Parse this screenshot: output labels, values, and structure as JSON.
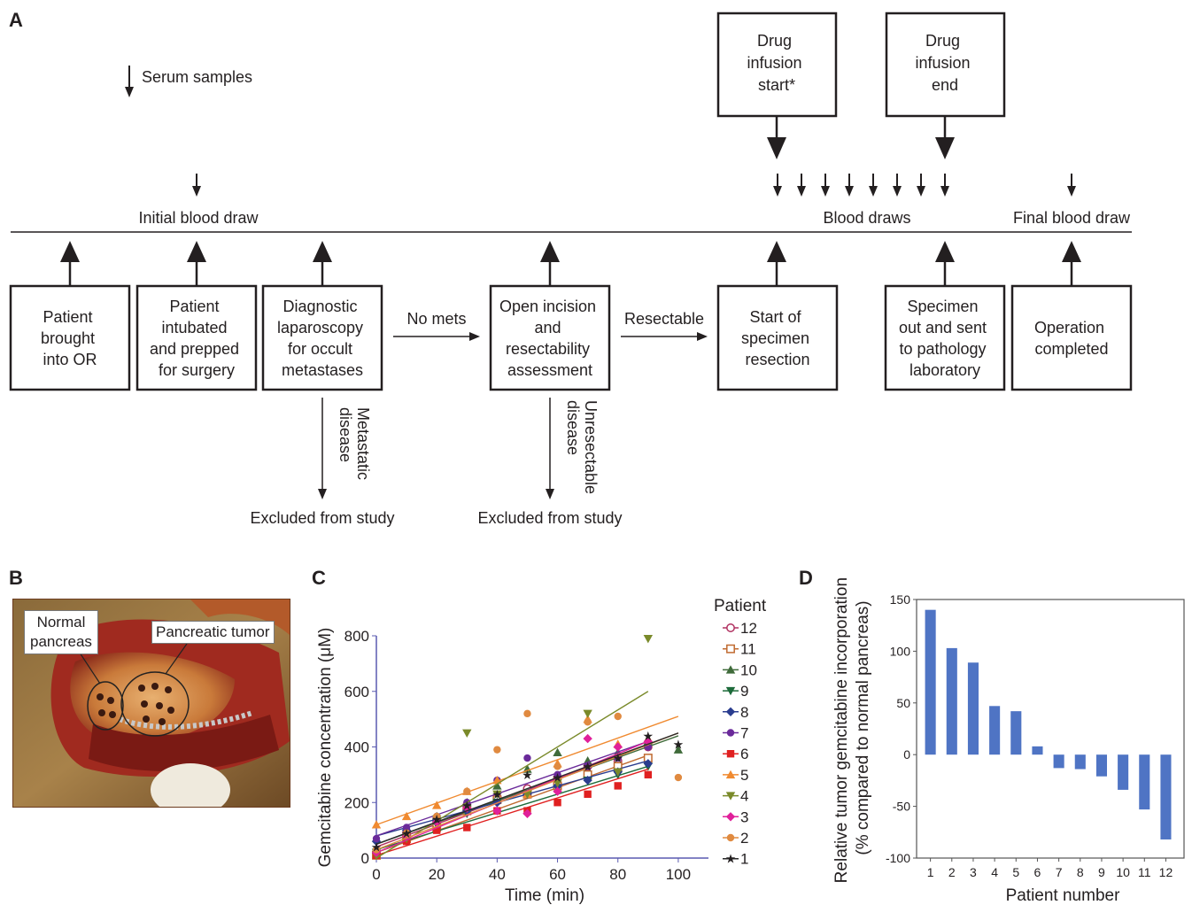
{
  "panels": {
    "a": "A",
    "b": "B",
    "c": "C",
    "d": "D"
  },
  "timeline": {
    "serum_samples": "Serum samples",
    "initial_blood_draw": "Initial blood draw",
    "blood_draws": "Blood draws",
    "final_blood_draw": "Final blood draw",
    "drug_start": [
      "Drug",
      "infusion",
      "start*"
    ],
    "drug_end": [
      "Drug",
      "infusion",
      "end"
    ],
    "steps": [
      {
        "lines": [
          "Patient",
          "brought",
          "into OR"
        ]
      },
      {
        "lines": [
          "Patient",
          "intubated",
          "and prepped",
          "for surgery"
        ]
      },
      {
        "lines": [
          "Diagnostic",
          "laparoscopy",
          "for occult",
          "metastases"
        ]
      },
      {
        "lines": [
          "Open incision",
          "and",
          "resectability",
          "assessment"
        ]
      },
      {
        "lines": [
          "Start of",
          "specimen",
          "resection"
        ]
      },
      {
        "lines": [
          "Specimen",
          "out and sent",
          "to pathology",
          "laboratory"
        ]
      },
      {
        "lines": [
          "Operation",
          "completed"
        ]
      }
    ],
    "no_mets": "No mets",
    "resectable": "Resectable",
    "metastatic_disease": [
      "Metastatic",
      "disease"
    ],
    "unresectable_disease": [
      "Unresectable",
      "disease"
    ],
    "excluded_1": "Excluded from study",
    "excluded_2": "Excluded from study"
  },
  "photo": {
    "normal_pancreas": [
      "Normal",
      "pancreas"
    ],
    "pancreatic_tumor": "Pancreatic tumor"
  },
  "colors": {
    "bar": "#4f74c4",
    "axis_c": "#5a5ab0"
  },
  "chart_data": [
    {
      "type": "scatter",
      "xlabel": "Time (min)",
      "ylabel": "Gemcitabine concentration (μM)",
      "xlim": [
        0,
        110
      ],
      "ylim": [
        0,
        800
      ],
      "xticks": [
        0,
        20,
        40,
        60,
        80,
        100
      ],
      "yticks": [
        0,
        200,
        400,
        600,
        800
      ],
      "legend_title": "Patient",
      "legend_position": "right",
      "series": [
        {
          "name": "12",
          "color": "#b03060",
          "marker": "circle-open",
          "points": [
            [
              0,
              20
            ],
            [
              10,
              90
            ],
            [
              20,
              140
            ],
            [
              30,
              190
            ],
            [
              40,
              220
            ],
            [
              50,
              250
            ],
            [
              60,
              290
            ],
            [
              70,
              330
            ],
            [
              80,
              350
            ],
            [
              90,
              400
            ]
          ],
          "fit": [
            [
              0,
              40
            ],
            [
              90,
              410
            ]
          ]
        },
        {
          "name": "11",
          "color": "#c06a30",
          "marker": "square-open",
          "points": [
            [
              0,
              10
            ],
            [
              10,
              70
            ],
            [
              20,
              110
            ],
            [
              30,
              170
            ],
            [
              40,
              210
            ],
            [
              50,
              230
            ],
            [
              60,
              260
            ],
            [
              70,
              300
            ],
            [
              80,
              330
            ],
            [
              90,
              360
            ]
          ],
          "fit": [
            [
              0,
              20
            ],
            [
              90,
              370
            ]
          ]
        },
        {
          "name": "10",
          "color": "#3f6b3a",
          "marker": "triangle",
          "points": [
            [
              0,
              30
            ],
            [
              10,
              80
            ],
            [
              20,
              150
            ],
            [
              30,
              200
            ],
            [
              40,
              260
            ],
            [
              50,
              320
            ],
            [
              60,
              380
            ],
            [
              70,
              350
            ],
            [
              80,
              380
            ],
            [
              90,
              420
            ],
            [
              100,
              390
            ]
          ],
          "fit": [
            [
              0,
              50
            ],
            [
              100,
              440
            ]
          ]
        },
        {
          "name": "9",
          "color": "#1d6b3a",
          "marker": "triangle-down",
          "points": [
            [
              0,
              20
            ],
            [
              10,
              70
            ],
            [
              20,
              120
            ],
            [
              30,
              160
            ],
            [
              40,
              200
            ],
            [
              50,
              230
            ],
            [
              60,
              250
            ],
            [
              70,
              280
            ],
            [
              80,
              300
            ],
            [
              90,
              330
            ]
          ],
          "fit": [
            [
              0,
              30
            ],
            [
              90,
              330
            ]
          ]
        },
        {
          "name": "8",
          "color": "#2a3d8f",
          "marker": "diamond",
          "points": [
            [
              0,
              60
            ],
            [
              10,
              100
            ],
            [
              20,
              130
            ],
            [
              30,
              170
            ],
            [
              40,
              200
            ],
            [
              50,
              230
            ],
            [
              60,
              260
            ],
            [
              70,
              280
            ],
            [
              80,
              310
            ],
            [
              90,
              340
            ]
          ],
          "fit": [
            [
              0,
              80
            ],
            [
              90,
              350
            ]
          ]
        },
        {
          "name": "7",
          "color": "#6a2a9a",
          "marker": "circle",
          "points": [
            [
              0,
              70
            ],
            [
              10,
              110
            ],
            [
              20,
              150
            ],
            [
              30,
              200
            ],
            [
              40,
              280
            ],
            [
              50,
              360
            ],
            [
              60,
              300
            ],
            [
              70,
              330
            ],
            [
              80,
              360
            ],
            [
              90,
              400
            ]
          ],
          "fit": [
            [
              0,
              80
            ],
            [
              90,
              420
            ]
          ]
        },
        {
          "name": "6",
          "color": "#e02020",
          "marker": "square",
          "points": [
            [
              0,
              10
            ],
            [
              10,
              60
            ],
            [
              20,
              100
            ],
            [
              30,
              110
            ],
            [
              40,
              170
            ],
            [
              50,
              170
            ],
            [
              60,
              200
            ],
            [
              70,
              230
            ],
            [
              80,
              260
            ],
            [
              90,
              300
            ]
          ],
          "fit": [
            [
              0,
              10
            ],
            [
              90,
              320
            ]
          ]
        },
        {
          "name": "5",
          "color": "#f08a30",
          "marker": "triangle",
          "points": [
            [
              0,
              120
            ],
            [
              10,
              150
            ],
            [
              20,
              190
            ],
            [
              30,
              240
            ],
            [
              40,
              280
            ],
            [
              50,
              230
            ],
            [
              60,
              340
            ],
            [
              70,
              500
            ],
            [
              80,
              410
            ],
            [
              90,
              430
            ]
          ],
          "fit": [
            [
              0,
              120
            ],
            [
              100,
              510
            ]
          ]
        },
        {
          "name": "4",
          "color": "#7a8a2a",
          "marker": "triangle-down",
          "points": [
            [
              0,
              10
            ],
            [
              10,
              70
            ],
            [
              20,
              140
            ],
            [
              30,
              450
            ],
            [
              40,
              230
            ],
            [
              50,
              230
            ],
            [
              60,
              270
            ],
            [
              70,
              520
            ],
            [
              80,
              310
            ],
            [
              90,
              790
            ]
          ],
          "fit": [
            [
              0,
              0
            ],
            [
              90,
              600
            ]
          ]
        },
        {
          "name": "3",
          "color": "#e0209a",
          "marker": "diamond",
          "points": [
            [
              0,
              20
            ],
            [
              10,
              80
            ],
            [
              20,
              130
            ],
            [
              30,
              180
            ],
            [
              40,
              170
            ],
            [
              50,
              160
            ],
            [
              60,
              240
            ],
            [
              70,
              430
            ],
            [
              80,
              400
            ],
            [
              90,
              420
            ]
          ],
          "fit": [
            [
              0,
              20
            ],
            [
              90,
              420
            ]
          ]
        },
        {
          "name": "2",
          "color": "#e08a40",
          "marker": "circle",
          "points": [
            [
              0,
              30
            ],
            [
              10,
              90
            ],
            [
              20,
              150
            ],
            [
              30,
              240
            ],
            [
              40,
              390
            ],
            [
              50,
              520
            ],
            [
              60,
              330
            ],
            [
              70,
              490
            ],
            [
              80,
              510
            ],
            [
              100,
              290
            ]
          ],
          "fit": [
            [
              0,
              30
            ],
            [
              100,
              450
            ]
          ]
        },
        {
          "name": "1",
          "color": "#2a2a2a",
          "marker": "star",
          "points": [
            [
              0,
              40
            ],
            [
              10,
              90
            ],
            [
              20,
              140
            ],
            [
              30,
              190
            ],
            [
              40,
              230
            ],
            [
              50,
              300
            ],
            [
              60,
              290
            ],
            [
              70,
              330
            ],
            [
              80,
              360
            ],
            [
              90,
              440
            ],
            [
              100,
              410
            ]
          ],
          "fit": [
            [
              0,
              50
            ],
            [
              100,
              450
            ]
          ]
        }
      ]
    },
    {
      "type": "bar",
      "xlabel": "Patient number",
      "ylabel": [
        "Relative tumor gemcitabine incorporation",
        "(% compared to normal pancreas)"
      ],
      "categories": [
        "1",
        "2",
        "3",
        "4",
        "5",
        "6",
        "7",
        "8",
        "9",
        "10",
        "11",
        "12"
      ],
      "values": [
        140,
        103,
        89,
        47,
        42,
        8,
        -13,
        -14,
        -21,
        -34,
        -53,
        -82
      ],
      "ylim": [
        -100,
        150
      ],
      "yticks": [
        150,
        100,
        50,
        0,
        -50,
        -100
      ],
      "grid": false
    }
  ]
}
